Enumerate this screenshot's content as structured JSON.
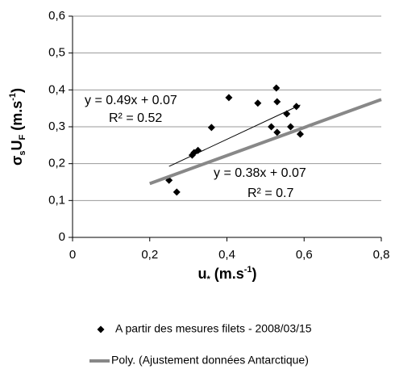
{
  "chart_data": {
    "type": "scatter",
    "xlabel_parts": [
      "u",
      "*",
      " (m.s",
      "-1",
      ")"
    ],
    "ylabel_parts": [
      "σ",
      "s",
      "U",
      "F",
      " (m.s",
      "-1",
      ")"
    ],
    "xlim": [
      0,
      0.8
    ],
    "ylim": [
      0,
      0.6
    ],
    "xticks": [
      0,
      {
        "value": 0.2,
        "label": "0,2"
      },
      {
        "value": 0.4,
        "label": "0,4"
      },
      {
        "value": 0.6,
        "label": "0,6"
      },
      {
        "value": 0.8,
        "label": "0,8"
      }
    ],
    "yticks": [
      0,
      {
        "value": 0.1,
        "label": "0,1"
      },
      {
        "value": 0.2,
        "label": "0,2"
      },
      {
        "value": 0.3,
        "label": "0,3"
      },
      {
        "value": 0.4,
        "label": "0,4"
      },
      {
        "value": 0.5,
        "label": "0,5"
      },
      {
        "value": 0.6,
        "label": "0,6"
      }
    ],
    "grid": true,
    "series": [
      {
        "name": "A partir des mesures filets - 2008/03/15",
        "color": "#000000",
        "marker": "diamond",
        "x": [
          0.25,
          0.27,
          0.31,
          0.315,
          0.325,
          0.36,
          0.405,
          0.48,
          0.528,
          0.53,
          0.515,
          0.53,
          0.555,
          0.565,
          0.58,
          0.59
        ],
        "values": [
          0.155,
          0.123,
          0.223,
          0.23,
          0.236,
          0.298,
          0.379,
          0.364,
          0.405,
          0.368,
          0.3,
          0.285,
          0.335,
          0.3,
          0.355,
          0.28
        ]
      },
      {
        "name": "Poly. (Ajustement données Antarctique)",
        "color": "#888888",
        "x": [
          0.2,
          0.8
        ],
        "values": [
          0.146,
          0.374
        ]
      }
    ],
    "fit_line": {
      "color": "#000000",
      "x": [
        0.25,
        0.59
      ],
      "values": [
        0.1925,
        0.3591
      ]
    },
    "annotations": [
      {
        "text": "y = 0.49x + 0.07",
        "color": "#000000"
      },
      {
        "text": "R² = 0.52",
        "color": "#000000"
      },
      {
        "text": "y = 0.38x + 0.07",
        "color": "#888888"
      },
      {
        "text": "R² = 0.7",
        "color": "#888888"
      }
    ]
  }
}
